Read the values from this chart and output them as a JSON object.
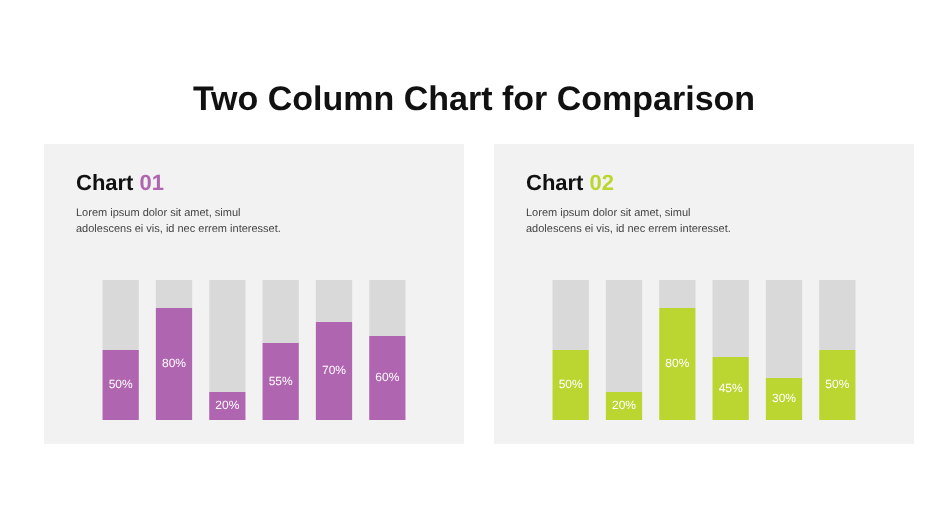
{
  "chart_data": [
    {
      "type": "bar",
      "title": "Chart 01",
      "subtitle": "Lorem ipsum dolor sit amet, simul adolescens ei vis, id nec errem interesset.",
      "annotations": [
        "Two Column Chart for Comparison"
      ],
      "categories": [
        null,
        null,
        null,
        null,
        null,
        null
      ],
      "stacked": true,
      "ylim": [
        0,
        100
      ],
      "tick_labels": false,
      "legend": false,
      "series": [
        {
          "color": "#b065b0",
          "values": [
            50,
            80,
            20,
            55,
            70,
            60
          ],
          "value_labels": [
            "50%",
            "80%",
            "20%",
            "55%",
            "70%",
            "60%"
          ]
        },
        {
          "color": "#d9d9d9",
          "values": [
            50,
            20,
            80,
            45,
            30,
            40
          ]
        }
      ]
    },
    {
      "type": "bar",
      "title": "Chart 02",
      "subtitle": "Lorem ipsum dolor sit amet, simul adolescens ei vis, id nec errem interesset.",
      "categories": [
        null,
        null,
        null,
        null,
        null,
        null
      ],
      "stacked": true,
      "ylim": [
        0,
        100
      ],
      "tick_labels": false,
      "legend": false,
      "series": [
        {
          "color": "#bcd631",
          "values": [
            50,
            20,
            80,
            45,
            30,
            50
          ],
          "value_labels": [
            "50%",
            "20%",
            "80%",
            "45%",
            "30%",
            "50%"
          ]
        },
        {
          "color": "#d9d9d9",
          "values": [
            50,
            80,
            20,
            55,
            70,
            50
          ]
        }
      ]
    }
  ]
}
